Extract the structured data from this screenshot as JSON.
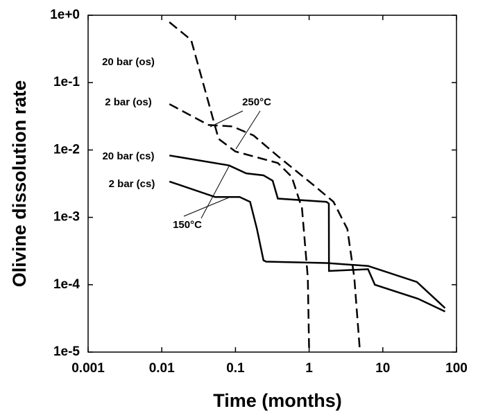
{
  "chart_data": {
    "type": "line",
    "xlabel": "Time (months)",
    "ylabel": "Olivine dissolution rate",
    "xscale": "log",
    "yscale": "log",
    "xlim": [
      0.001,
      100
    ],
    "ylim": [
      1e-05,
      1
    ],
    "xticks": [
      0.001,
      0.01,
      0.1,
      1,
      10,
      100
    ],
    "yticks": [
      {
        "value": 1e-05,
        "label": "1e-5"
      },
      {
        "value": 0.0001,
        "label": "1e-4"
      },
      {
        "value": 0.001,
        "label": "1e-3"
      },
      {
        "value": 0.01,
        "label": "1e-2"
      },
      {
        "value": 0.1,
        "label": "1e-1"
      },
      {
        "value": 1,
        "label": "1e+0"
      }
    ],
    "annotations": [
      "250°C",
      "150°C"
    ],
    "series": [
      {
        "name": "20 bar (os)",
        "color": "#000000",
        "dashed": true,
        "x": [
          0.0127,
          0.025,
          0.059,
          0.1,
          0.376,
          0.58,
          0.8,
          0.96,
          1
        ],
        "values": [
          0.79,
          0.43,
          0.0146,
          0.0095,
          0.0064,
          0.004,
          0.00136,
          0.000127,
          1e-05
        ]
      },
      {
        "name": "2 bar (os)",
        "color": "#000000",
        "dashed": true,
        "x": [
          0.0127,
          0.043,
          0.091,
          0.176,
          0.376,
          1.11,
          2.14,
          3.3,
          4.1,
          4.9
        ],
        "values": [
          0.048,
          0.0235,
          0.0224,
          0.0164,
          0.0081,
          0.0031,
          0.0017,
          0.00067,
          0.000127,
          1e-05
        ]
      },
      {
        "name": "20 bar (cs)",
        "color": "#000000",
        "dashed": false,
        "x": [
          0.0127,
          0.082,
          0.14,
          0.24,
          0.32,
          0.376,
          1.72,
          1.85,
          1.86,
          6.3,
          7.8,
          30,
          70
        ],
        "values": [
          0.0083,
          0.0059,
          0.0045,
          0.0042,
          0.0035,
          0.0019,
          0.0017,
          0.0016,
          0.00016,
          0.00017,
          0.0001,
          6.2e-05,
          4e-05
        ]
      },
      {
        "name": "2 bar (cs)",
        "color": "#000000",
        "dashed": false,
        "x": [
          0.0127,
          0.053,
          0.114,
          0.158,
          0.196,
          0.24,
          0.26,
          1.72,
          6.3,
          29,
          70
        ],
        "values": [
          0.0034,
          0.002,
          0.002,
          0.0017,
          0.00067,
          0.00023,
          0.00022,
          0.00021,
          0.00019,
          0.00011,
          4.5e-05
        ]
      }
    ]
  }
}
